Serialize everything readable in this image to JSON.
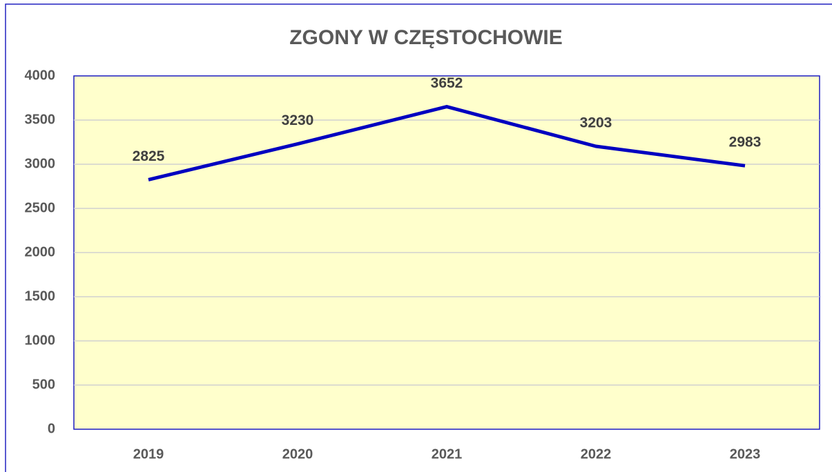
{
  "chart_data": {
    "type": "line",
    "title": "ZGONY W CZĘSTOCHOWIE",
    "categories": [
      "2019",
      "2020",
      "2021",
      "2022",
      "2023"
    ],
    "values": [
      2825,
      3230,
      3652,
      3203,
      2983
    ],
    "color": "#0000c0",
    "ylim": [
      0,
      4000
    ],
    "yticks": [
      0,
      500,
      1000,
      1500,
      2000,
      2500,
      3000,
      3500,
      4000
    ],
    "grid": true
  }
}
